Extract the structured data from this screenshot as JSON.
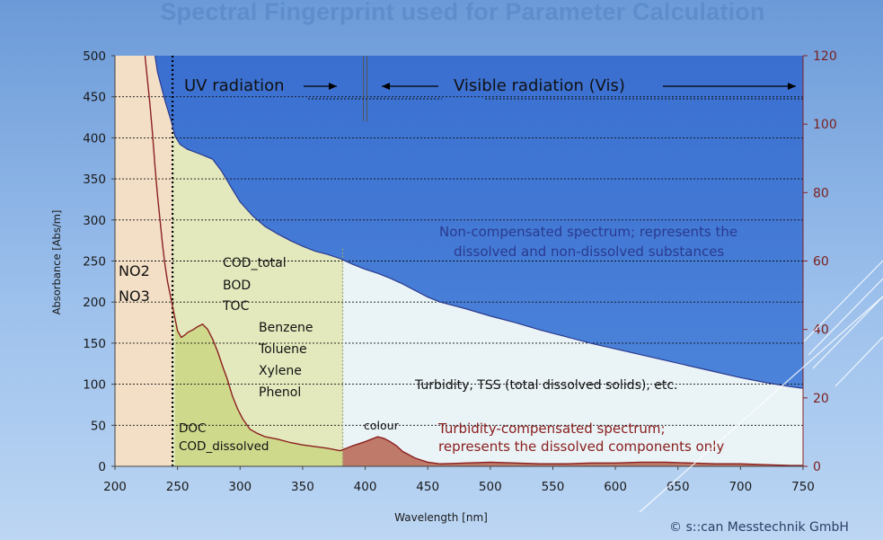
{
  "title": "Spectral Fingerprint used for Parameter Calculation",
  "copyright": "© s::can Messtechnik GmbH",
  "chart_data": {
    "type": "line",
    "xlabel": "Wavelength [nm]",
    "ylabel": "Absorbance [Abs/m]",
    "xlim": [
      200,
      750
    ],
    "ylim": [
      0,
      500
    ],
    "y2lim": [
      0,
      120
    ],
    "x_ticks": [
      "200",
      "250",
      "300",
      "350",
      "400",
      "450",
      "500",
      "550",
      "600",
      "650",
      "700",
      "750"
    ],
    "y_ticks": [
      "0",
      "50",
      "100",
      "150",
      "200",
      "250",
      "300",
      "350",
      "400",
      "450",
      "500"
    ],
    "y2_ticks": [
      "0",
      "20",
      "40",
      "60",
      "80",
      "100",
      "120"
    ],
    "grid": "dashed horizontal",
    "series": [
      {
        "name": "Non-compensated spectrum",
        "color": "#2a3a8f",
        "x": [
          232,
          234,
          240,
          245,
          248,
          252,
          258,
          265,
          270,
          278,
          285,
          292,
          300,
          310,
          320,
          330,
          340,
          350,
          360,
          370,
          380,
          390,
          400,
          410,
          420,
          430,
          440,
          450,
          460,
          480,
          500,
          520,
          540,
          560,
          580,
          600,
          620,
          640,
          660,
          680,
          700,
          720,
          740,
          750
        ],
        "values": [
          500,
          480,
          445,
          420,
          402,
          392,
          386,
          382,
          379,
          374,
          360,
          342,
          322,
          305,
          292,
          283,
          275,
          268,
          262,
          258,
          253,
          246,
          240,
          235,
          229,
          222,
          214,
          206,
          200,
          192,
          183,
          175,
          166,
          158,
          150,
          143,
          136,
          129,
          122,
          115,
          108,
          102,
          97,
          95
        ]
      },
      {
        "name": "Turbidity-compensated spectrum",
        "color": "#8b2020",
        "x": [
          224,
          226,
          228,
          230,
          232,
          234,
          236,
          238,
          240,
          242,
          244,
          246,
          248,
          250,
          253,
          256,
          258,
          262,
          266,
          270,
          274,
          278,
          282,
          286,
          290,
          294,
          298,
          302,
          308,
          314,
          320,
          330,
          340,
          350,
          360,
          370,
          380,
          390,
          400,
          405,
          410,
          415,
          420,
          425,
          430,
          440,
          450,
          460,
          480,
          500,
          520,
          540,
          560,
          580,
          600,
          620,
          640,
          660,
          680,
          700,
          720,
          740,
          750
        ],
        "values": [
          500,
          470,
          440,
          405,
          365,
          330,
          300,
          270,
          245,
          225,
          210,
          195,
          180,
          165,
          157,
          160,
          163,
          166,
          170,
          173,
          167,
          155,
          140,
          122,
          105,
          85,
          70,
          58,
          45,
          40,
          36,
          33,
          29,
          26,
          24,
          22,
          19,
          25,
          30,
          33,
          36,
          34,
          30,
          25,
          18,
          10,
          5,
          3,
          4,
          5,
          4,
          3,
          3,
          4,
          4,
          5,
          5,
          4,
          3,
          3,
          2,
          1,
          1
        ]
      }
    ],
    "annotations": {
      "uv": "UV radiation",
      "vis": "Visible radiation (Vis)",
      "noncomp_1": "Non-compensated spectrum; represents the",
      "noncomp_2": "dissolved and non-dissolved substances",
      "no2": "NO2",
      "no3": "NO3",
      "cod_total": "COD_total",
      "bod": "BOD",
      "toc": "TOC",
      "benzene": "Benzene",
      "toluene": "Toluene",
      "xylene": "Xylene",
      "phenol": "Phenol",
      "turbidity": "Turbidity, TSS (total dissolved solids), etc.",
      "doc": "DOC",
      "cod_dissolved": "COD_dissolved",
      "colour": "colour",
      "tc_1": "Turbidity-compensated spectrum;",
      "tc_2": "represents the dissolved components only"
    },
    "region_colors": {
      "nitrate": "#f3dfc6",
      "organics": "#e3e9bd",
      "turbidity": "#eaf3f6",
      "doc": "#cfd98c",
      "colour": "#bf7a6a",
      "sky": "#3e74d2"
    }
  }
}
